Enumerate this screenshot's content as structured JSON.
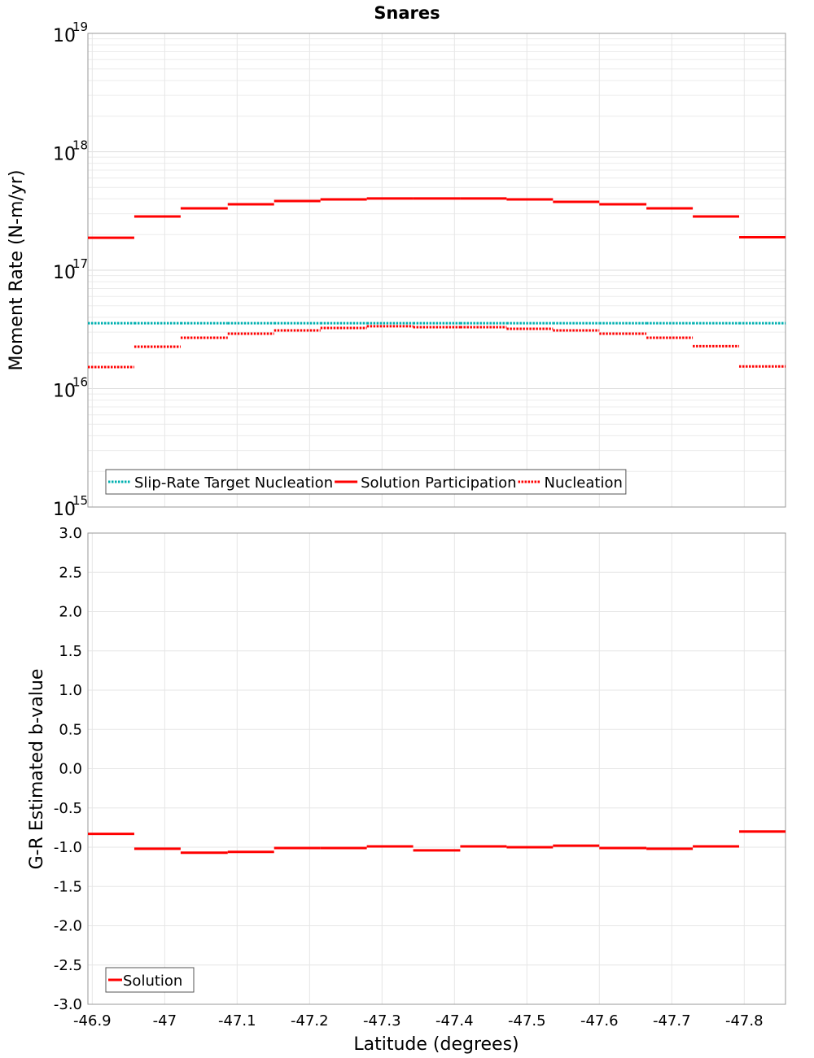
{
  "chart_data": [
    {
      "type": "line",
      "title": "Snares",
      "xlabel": "Latitude (degrees)",
      "ylabel": "Moment Rate (N-m/yr)",
      "yscale": "log",
      "ylim": [
        1000000000000000.0,
        1e+19
      ],
      "xlim": [
        -46.894,
        -47.857
      ],
      "y_ticks": [
        {
          "base": "10",
          "exp": "15",
          "value": 1000000000000000.0
        },
        {
          "base": "10",
          "exp": "16",
          "value": 1e+16
        },
        {
          "base": "10",
          "exp": "17",
          "value": 1e+17
        },
        {
          "base": "10",
          "exp": "18",
          "value": 1e+18
        },
        {
          "base": "10",
          "exp": "19",
          "value": 1e+19
        }
      ],
      "grid": true,
      "legend_position": "bottom-left",
      "bin_edges": [
        -46.894,
        -46.958,
        -47.022,
        -47.087,
        -47.151,
        -47.215,
        -47.279,
        -47.343,
        -47.408,
        -47.472,
        -47.536,
        -47.6,
        -47.665,
        -47.729,
        -47.793,
        -47.857
      ],
      "series": [
        {
          "name": "Slip-Rate Target Nucleation",
          "color": "#00b0b0",
          "style": "dotted",
          "values": [
            3.57e+16,
            3.57e+16,
            3.57e+16,
            3.57e+16,
            3.57e+16,
            3.57e+16,
            3.57e+16,
            3.57e+16,
            3.57e+16,
            3.57e+16,
            3.57e+16,
            3.57e+16,
            3.57e+16,
            3.57e+16,
            3.57e+16
          ]
        },
        {
          "name": "Solution Participation",
          "color": "#ff0000",
          "style": "solid",
          "values": [
            1.88e+17,
            2.84e+17,
            3.33e+17,
            3.6e+17,
            3.84e+17,
            3.96e+17,
            4.03e+17,
            4.03e+17,
            4.03e+17,
            3.96e+17,
            3.78e+17,
            3.6e+17,
            3.33e+17,
            2.84e+17,
            1.9e+17
          ]
        },
        {
          "name": "Nucleation",
          "color": "#ff0000",
          "style": "dotted",
          "values": [
            1.52e+16,
            2.26e+16,
            2.69e+16,
            2.91e+16,
            3.1e+16,
            3.25e+16,
            3.36e+16,
            3.3e+16,
            3.3e+16,
            3.2e+16,
            3.1e+16,
            2.91e+16,
            2.69e+16,
            2.28e+16,
            1.54e+16
          ]
        }
      ]
    },
    {
      "type": "line",
      "title": "",
      "xlabel": "Latitude (degrees)",
      "ylabel": "G-R Estimated b-value",
      "ylim": [
        -3.0,
        3.0
      ],
      "xlim": [
        -46.894,
        -47.857
      ],
      "y_ticks": [
        "-3.0",
        "-2.5",
        "-2.0",
        "-1.5",
        "-1.0",
        "-0.5",
        "0.0",
        "0.5",
        "1.0",
        "1.5",
        "2.0",
        "2.5",
        "3.0"
      ],
      "x_ticks": [
        "-46.9",
        "-47",
        "-47.1",
        "-47.2",
        "-47.3",
        "-47.4",
        "-47.5",
        "-47.6",
        "-47.7",
        "-47.8"
      ],
      "grid": true,
      "legend_position": "bottom-left",
      "series": [
        {
          "name": "Solution",
          "color": "#ff0000",
          "style": "solid",
          "values": [
            -0.83,
            -1.02,
            -1.07,
            -1.06,
            -1.01,
            -1.01,
            -0.99,
            -1.04,
            -0.99,
            -1.0,
            -0.98,
            -1.01,
            -1.02,
            -0.99,
            -0.8
          ]
        }
      ]
    }
  ]
}
